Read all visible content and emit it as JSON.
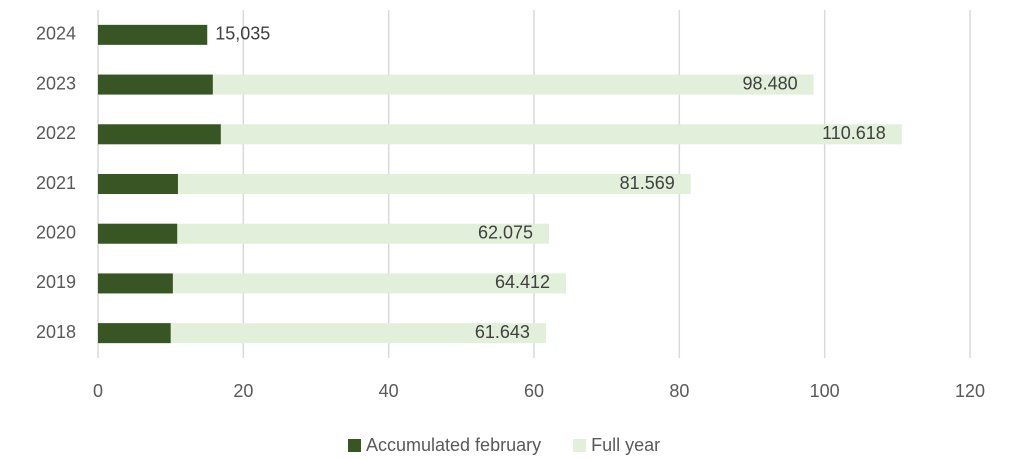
{
  "chart_data": {
    "type": "bar",
    "orientation": "horizontal",
    "overlap": true,
    "categories": [
      "2024",
      "2023",
      "2022",
      "2021",
      "2020",
      "2019",
      "2018"
    ],
    "series": [
      {
        "name": "Full year",
        "color": "#e2efda",
        "values": [
          null,
          98.48,
          110.618,
          81.569,
          62.075,
          64.412,
          61.643
        ],
        "value_labels": [
          null,
          "98.480",
          "110.618",
          "81.569",
          "62.075",
          "64.412",
          "61.643"
        ]
      },
      {
        "name": "Accumulated february",
        "color": "#375623",
        "values": [
          15.035,
          15.8,
          16.9,
          11.0,
          10.9,
          10.3,
          10.0
        ],
        "value_labels": [
          "15,035",
          null,
          null,
          null,
          null,
          null,
          null
        ]
      }
    ],
    "xlim": [
      0,
      120
    ],
    "xticks": [
      0,
      20,
      40,
      60,
      80,
      100,
      120
    ],
    "grid": true,
    "legend": [
      "Accumulated february",
      "Full year"
    ],
    "legend_position": "bottom"
  }
}
